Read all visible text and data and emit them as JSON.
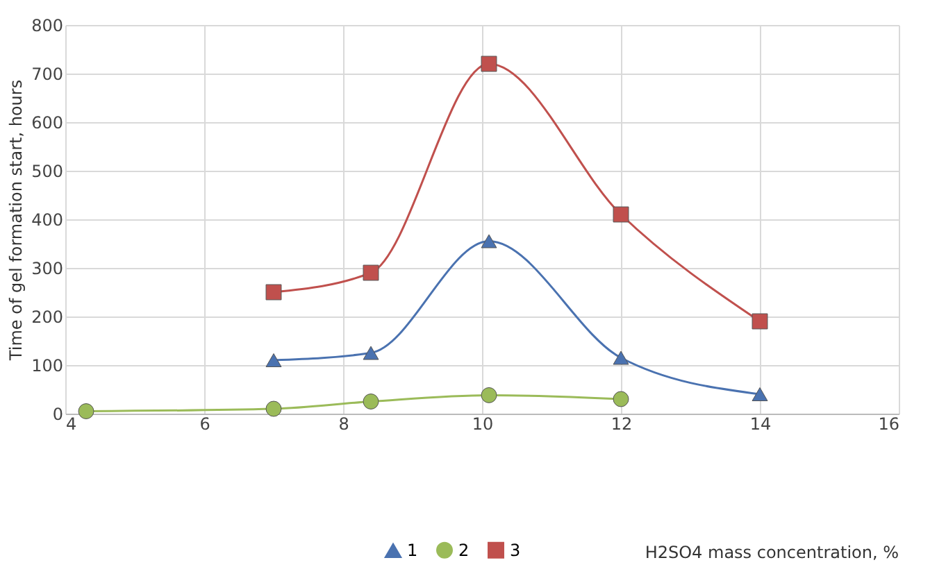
{
  "chart_data": {
    "type": "line",
    "annotations": [
      "H2SO4 mass concentration, %"
    ],
    "ylabel": "Time of gel formation start, hours",
    "xlim": [
      4,
      16
    ],
    "xticks": [
      4,
      6,
      8,
      10,
      12,
      14,
      16
    ],
    "ylim": [
      0,
      800
    ],
    "yticks": [
      0,
      100,
      200,
      300,
      400,
      500,
      600,
      700,
      800
    ],
    "grid": true,
    "legend": "bottom",
    "line_style": "solid",
    "series": [
      {
        "name": "1",
        "color": "#4a72b0",
        "marker": "triangle",
        "x": [
          7,
          8.4,
          10.1,
          12,
          14
        ],
        "values": [
          110,
          125,
          355,
          115,
          40
        ]
      },
      {
        "name": "2",
        "color": "#9bbb59",
        "marker": "circle",
        "x": [
          4.3,
          7,
          8.4,
          10.1,
          12
        ],
        "values": [
          5,
          10,
          25,
          38,
          30
        ]
      },
      {
        "name": "3",
        "color": "#c0504d",
        "marker": "square",
        "x": [
          7,
          8.4,
          10.1,
          12,
          14
        ],
        "values": [
          250,
          290,
          720,
          410,
          190
        ]
      }
    ]
  }
}
